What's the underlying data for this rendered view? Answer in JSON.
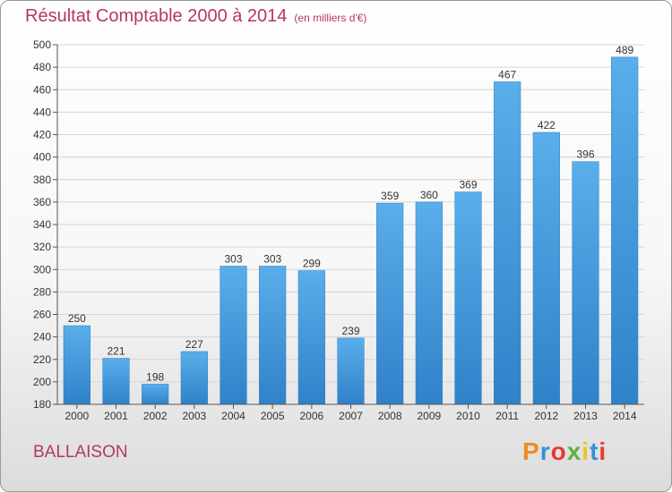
{
  "title": "Résultat Comptable 2000 à 2014",
  "subtitle": "(en milliers d'€)",
  "place_name": "BALLAISON",
  "logo_text": "Proxiti",
  "logo_colors": [
    "#f08c1e",
    "#3a8fd6",
    "#e63b2e",
    "#5db33a",
    "#f0c41e",
    "#3a8fd6",
    "#e63b2e"
  ],
  "chart_data": {
    "type": "bar",
    "categories": [
      "2000",
      "2001",
      "2002",
      "2003",
      "2004",
      "2005",
      "2006",
      "2007",
      "2008",
      "2009",
      "2010",
      "2011",
      "2012",
      "2013",
      "2014"
    ],
    "values": [
      250,
      221,
      198,
      227,
      303,
      303,
      299,
      239,
      359,
      360,
      369,
      467,
      422,
      396,
      489
    ],
    "ylim": [
      180,
      500
    ],
    "yticks": [
      180,
      200,
      220,
      240,
      260,
      280,
      300,
      320,
      340,
      360,
      380,
      400,
      420,
      440,
      460,
      480,
      500
    ],
    "grid": true,
    "bar_color": "#4a9fe0",
    "xlabel": "",
    "ylabel": ""
  }
}
